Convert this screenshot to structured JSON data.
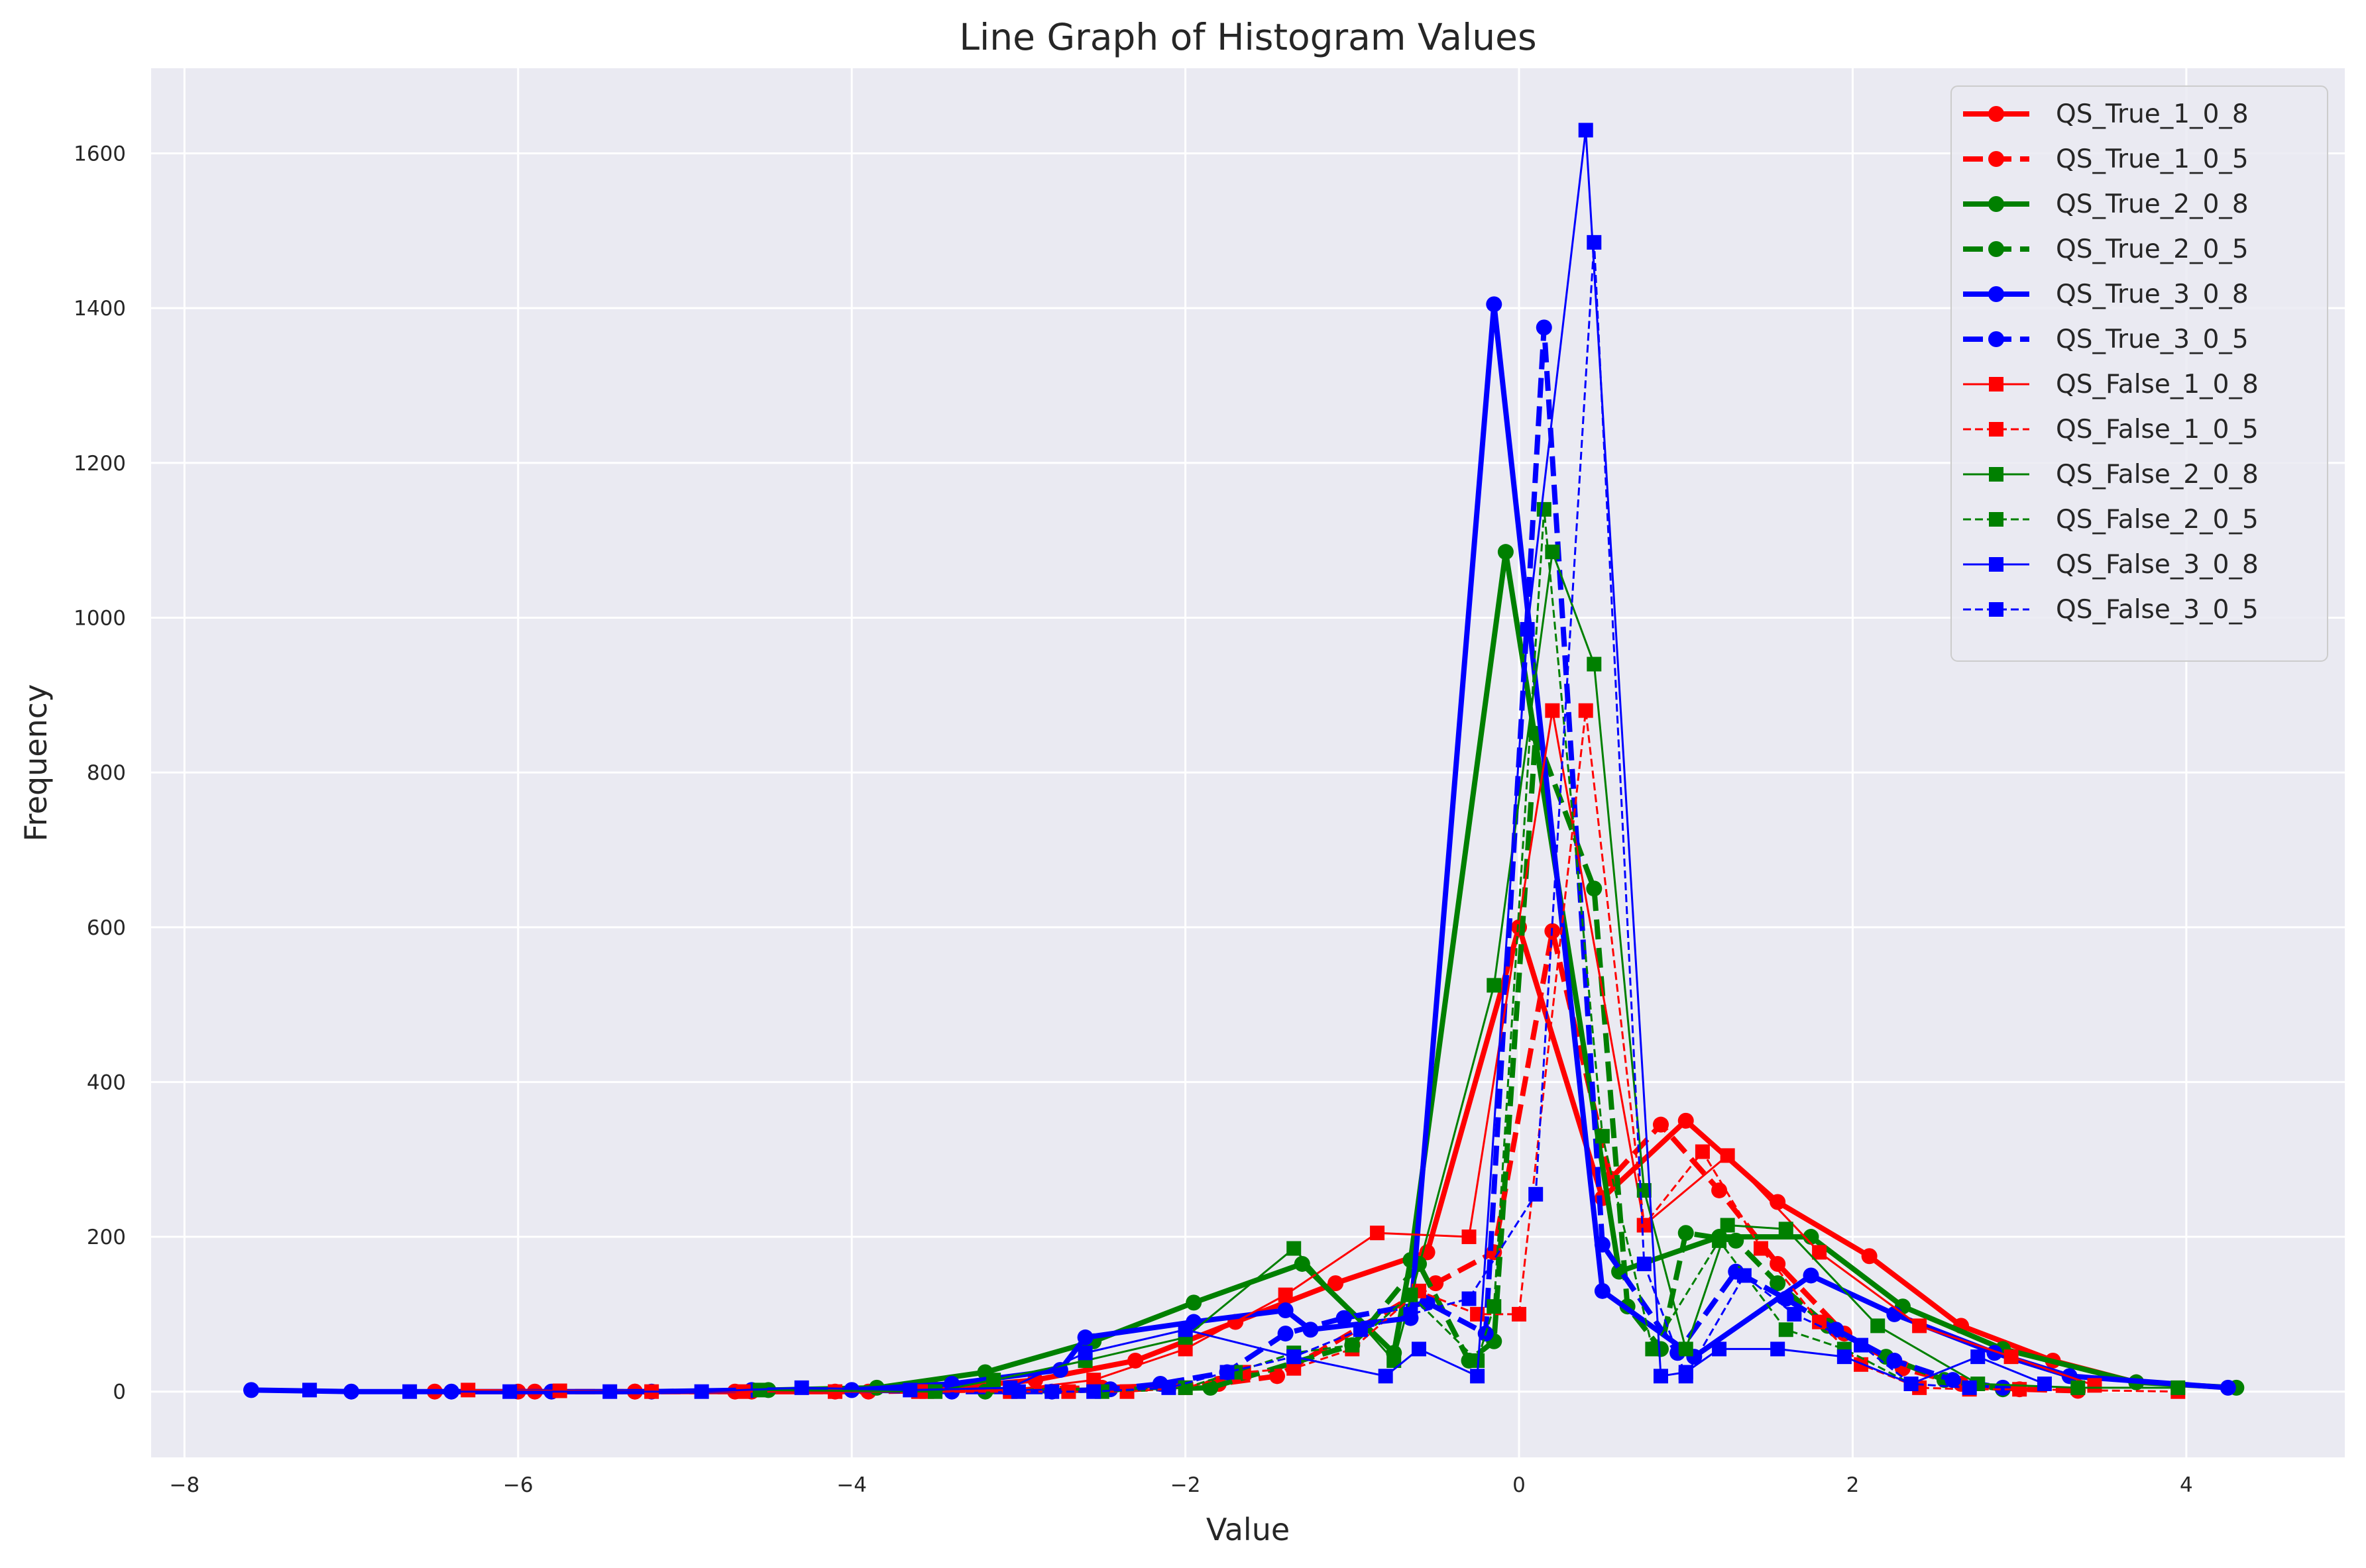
{
  "chart_data": {
    "type": "line",
    "title": "Line Graph of Histogram Values",
    "xlabel": "Value",
    "ylabel": "Frequency",
    "xlim": [
      -8.2,
      4.95
    ],
    "ylim": [
      -85,
      1710
    ],
    "xticks": [
      -8,
      -6,
      -4,
      -2,
      0,
      2,
      4
    ],
    "yticks": [
      0,
      200,
      400,
      600,
      800,
      1000,
      1200,
      1400,
      1600
    ],
    "grid": true,
    "legend_position": "top-right",
    "series": [
      {
        "name": "QS_True_1_0_8",
        "color": "#ff0000",
        "dash": "solid",
        "width": 8,
        "marker": "circle",
        "x": [
          -6.5,
          -5.9,
          -5.3,
          -4.7,
          -4.1,
          -3.5,
          -2.9,
          -2.3,
          -1.7,
          -1.1,
          -0.55,
          0.0,
          0.5,
          1.0,
          1.55,
          2.1,
          2.65,
          3.2,
          3.7
        ],
        "y": [
          0,
          0,
          0,
          0,
          0,
          3,
          15,
          40,
          90,
          140,
          180,
          600,
          250,
          350,
          245,
          175,
          85,
          40,
          12
        ]
      },
      {
        "name": "QS_True_1_0_5",
        "color": "#ff0000",
        "dash": "dashed",
        "width": 8,
        "marker": "circle",
        "x": [
          -6.0,
          -5.3,
          -4.6,
          -3.9,
          -3.2,
          -2.5,
          -1.8,
          -1.45,
          -0.5,
          -0.15,
          0.2,
          0.55,
          0.85,
          1.2,
          1.55,
          1.95,
          2.3,
          2.65,
          3.0,
          3.35
        ],
        "y": [
          0,
          0,
          0,
          0,
          2,
          5,
          10,
          20,
          140,
          180,
          595,
          275,
          345,
          260,
          165,
          75,
          30,
          10,
          3,
          1
        ]
      },
      {
        "name": "QS_True_2_0_8",
        "color": "#008000",
        "dash": "solid",
        "width": 8,
        "marker": "circle",
        "x": [
          -4.5,
          -3.85,
          -3.2,
          -2.55,
          -1.95,
          -1.3,
          -0.75,
          -0.65,
          -0.08,
          0.6,
          1.2,
          1.75,
          2.3,
          2.9,
          3.7,
          4.3
        ],
        "y": [
          2,
          5,
          25,
          65,
          115,
          165,
          50,
          170,
          1085,
          155,
          200,
          200,
          110,
          55,
          12,
          5
        ]
      },
      {
        "name": "QS_True_2_0_5",
        "color": "#008000",
        "dash": "dashed",
        "width": 8,
        "marker": "circle",
        "x": [
          -3.2,
          -2.55,
          -1.85,
          -1.0,
          -0.6,
          -0.3,
          -0.15,
          0.1,
          0.45,
          0.65,
          0.85,
          1.0,
          1.3,
          1.55,
          1.85,
          2.2,
          2.55,
          2.9
        ],
        "y": [
          0,
          2,
          5,
          60,
          165,
          40,
          65,
          850,
          650,
          110,
          55,
          205,
          195,
          140,
          85,
          45,
          15,
          3
        ]
      },
      {
        "name": "QS_True_3_0_8",
        "color": "#0000ff",
        "dash": "solid",
        "width": 8,
        "marker": "circle",
        "x": [
          -7.6,
          -7.0,
          -6.4,
          -5.8,
          -5.2,
          -4.6,
          -4.0,
          -3.4,
          -2.75,
          -2.6,
          -1.95,
          -1.4,
          -1.25,
          -0.65,
          -0.15,
          0.5,
          1.05,
          1.75,
          2.25,
          2.85,
          3.3,
          4.25
        ],
        "y": [
          2,
          0,
          0,
          0,
          0,
          2,
          2,
          10,
          28,
          70,
          90,
          105,
          80,
          95,
          1405,
          130,
          45,
          150,
          100,
          50,
          20,
          5
        ]
      },
      {
        "name": "QS_True_3_0_5",
        "color": "#0000ff",
        "dash": "dashed",
        "width": 8,
        "marker": "circle",
        "x": [
          -4.0,
          -3.4,
          -2.8,
          -2.45,
          -2.15,
          -1.75,
          -1.4,
          -1.05,
          -0.55,
          -0.2,
          0.15,
          0.5,
          0.95,
          1.3,
          1.6,
          1.9,
          2.25,
          2.6,
          2.9
        ],
        "y": [
          2,
          0,
          0,
          3,
          10,
          25,
          75,
          95,
          115,
          75,
          1375,
          190,
          50,
          155,
          120,
          80,
          40,
          15,
          5
        ]
      },
      {
        "name": "QS_False_1_0_8",
        "color": "#ff0000",
        "dash": "solid",
        "width": 3,
        "marker": "square",
        "x": [
          -6.3,
          -5.75,
          -5.2,
          -4.65,
          -4.1,
          -3.55,
          -3.05,
          -2.55,
          -2.0,
          -1.4,
          -0.85,
          -0.3,
          0.2,
          0.75,
          1.25,
          1.8,
          2.4,
          2.95,
          3.45
        ],
        "y": [
          2,
          1,
          0,
          0,
          0,
          0,
          2,
          15,
          55,
          125,
          205,
          200,
          880,
          215,
          305,
          180,
          85,
          45,
          8
        ]
      },
      {
        "name": "QS_False_1_0_5",
        "color": "#ff0000",
        "dash": "dashed",
        "width": 3,
        "marker": "square",
        "x": [
          -3.6,
          -3.05,
          -2.7,
          -2.35,
          -2.0,
          -1.65,
          -1.35,
          -1.0,
          -0.6,
          -0.25,
          0.0,
          0.4,
          0.75,
          1.1,
          1.45,
          1.8,
          2.05,
          2.4,
          2.7,
          3.0,
          3.95
        ],
        "y": [
          0,
          0,
          0,
          0,
          5,
          25,
          30,
          55,
          130,
          100,
          100,
          880,
          215,
          310,
          185,
          90,
          35,
          5,
          3,
          3,
          0
        ]
      },
      {
        "name": "QS_False_2_0_8",
        "color": "#008000",
        "dash": "solid",
        "width": 3,
        "marker": "square",
        "x": [
          -4.55,
          -3.5,
          -3.15,
          -2.6,
          -2.0,
          -1.35,
          -0.75,
          -0.15,
          0.2,
          0.45,
          0.75,
          1.0,
          1.25,
          1.6,
          2.15,
          2.75,
          3.35,
          3.95
        ],
        "y": [
          2,
          0,
          15,
          40,
          70,
          185,
          40,
          525,
          1085,
          940,
          260,
          55,
          215,
          210,
          85,
          10,
          5,
          5
        ]
      },
      {
        "name": "QS_False_2_0_5",
        "color": "#008000",
        "dash": "dashed",
        "width": 3,
        "marker": "square",
        "x": [
          -2.5,
          -2.0,
          -1.7,
          -1.35,
          -1.0,
          -0.65,
          -0.25,
          -0.15,
          0.15,
          0.5,
          0.8,
          1.2,
          1.6,
          1.95,
          2.35
        ],
        "y": [
          0,
          5,
          25,
          50,
          60,
          125,
          40,
          110,
          1140,
          330,
          55,
          195,
          80,
          55,
          10
        ]
      },
      {
        "name": "QS_False_3_0_8",
        "color": "#0000ff",
        "dash": "solid",
        "width": 3,
        "marker": "square",
        "x": [
          -7.25,
          -6.65,
          -6.05,
          -5.45,
          -4.9,
          -4.3,
          -3.65,
          -3.05,
          -2.6,
          -2.0,
          -1.35,
          -0.8,
          -0.6,
          -0.25,
          0.05,
          0.4,
          0.85,
          1.0,
          1.2,
          1.55,
          1.95,
          2.35,
          2.75,
          3.15
        ],
        "y": [
          2,
          0,
          0,
          0,
          0,
          5,
          2,
          5,
          50,
          80,
          45,
          20,
          55,
          20,
          985,
          1630,
          20,
          25,
          55,
          55,
          45,
          10,
          45,
          10
        ]
      },
      {
        "name": "QS_False_3_0_5",
        "color": "#0000ff",
        "dash": "dashed",
        "width": 3,
        "marker": "square",
        "x": [
          -3.0,
          -2.8,
          -2.55,
          -2.1,
          -1.75,
          -1.35,
          -0.95,
          -0.65,
          -0.3,
          0.1,
          0.45,
          0.75,
          1.0,
          1.35,
          1.65,
          2.05,
          2.35,
          2.7
        ],
        "y": [
          0,
          0,
          0,
          5,
          25,
          45,
          80,
          100,
          120,
          255,
          1485,
          165,
          20,
          150,
          100,
          60,
          10,
          5
        ]
      }
    ]
  }
}
